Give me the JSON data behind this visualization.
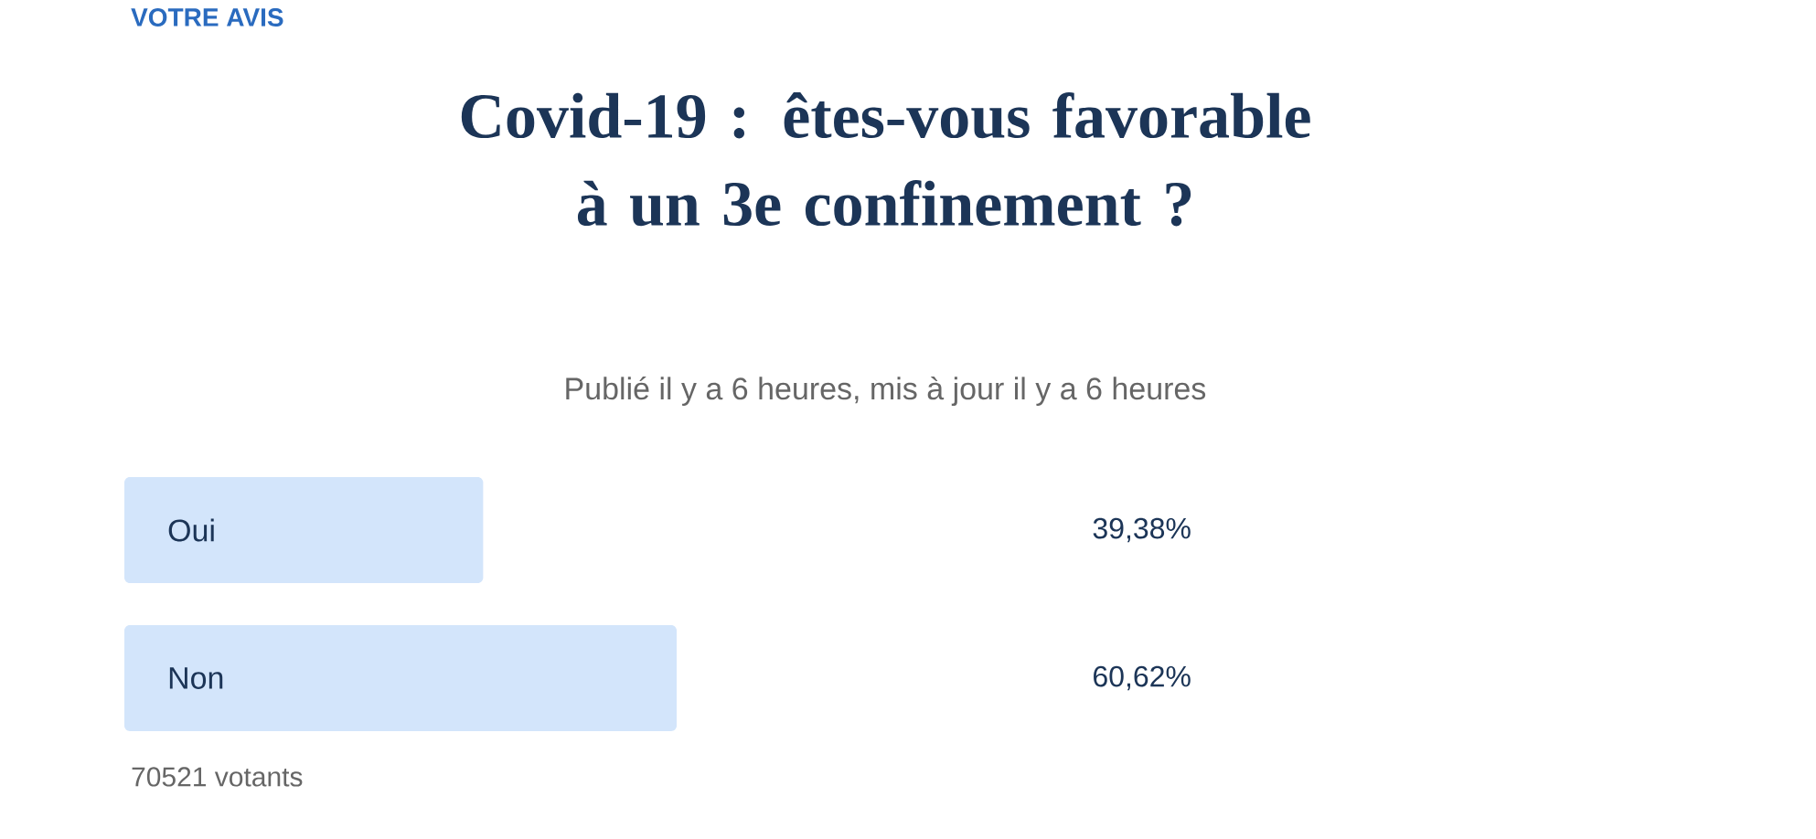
{
  "chart_data": {
    "type": "bar",
    "orientation": "horizontal",
    "title": "Covid-19 : êtes-vous favorable à un 3e confinement ?",
    "subtitle": "Publié il y a 6 heures, mis à jour il y a 6 heures",
    "categories": [
      "Oui",
      "Non"
    ],
    "values": [
      39.38,
      60.62
    ],
    "value_labels": [
      "39,38%",
      "60,62%"
    ],
    "color": "#d3e5fb",
    "tick_labels": false,
    "annotations": [
      "VOTRE AVIS",
      "70521 votants"
    ]
  }
}
